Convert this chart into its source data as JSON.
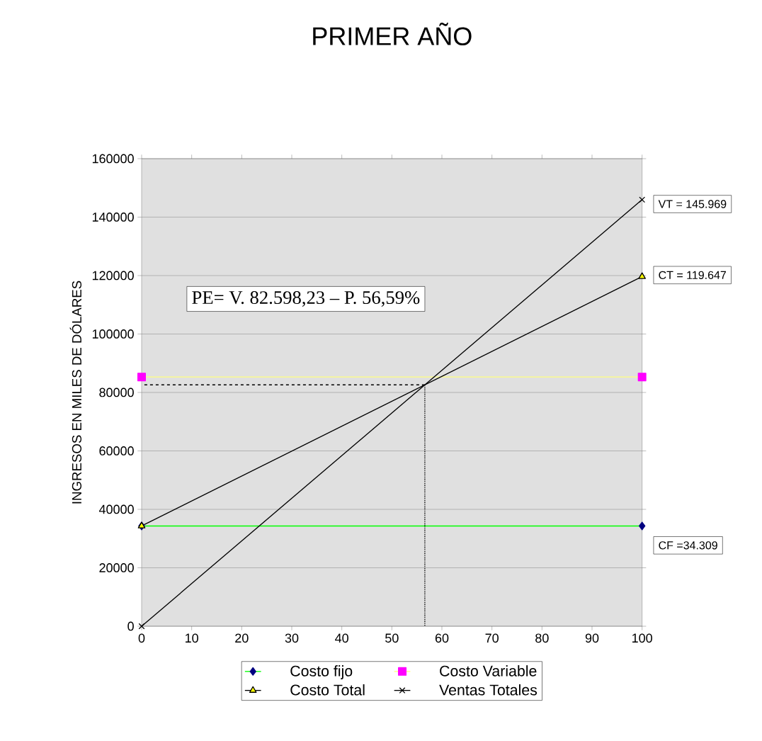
{
  "chart_data": {
    "type": "line",
    "title": "PRIMER AÑO",
    "ylabel": "INGRESOS EN MILES DE DÓLARES",
    "xlim": [
      0,
      100
    ],
    "ylim": [
      0,
      160000
    ],
    "xticks": [
      0,
      10,
      20,
      30,
      40,
      50,
      60,
      70,
      80,
      90,
      100
    ],
    "yticks": [
      0,
      20000,
      40000,
      60000,
      80000,
      100000,
      120000,
      140000,
      160000
    ],
    "grid": "y",
    "legend": "bottom",
    "series": [
      {
        "name": "Costo fijo",
        "x": [
          0,
          100
        ],
        "values": [
          34309,
          34309
        ],
        "color": "#00ff00",
        "colors": [
          "#000080",
          "#000080"
        ],
        "marker": "diamond"
      },
      {
        "name": "Costo Variable",
        "x": [
          0,
          100
        ],
        "values": [
          85300,
          85300
        ],
        "color": "#ffff80",
        "colors": [
          "#ff00ff",
          "#ff00ff"
        ],
        "marker": "square"
      },
      {
        "name": "Costo Total",
        "x": [
          0,
          100
        ],
        "values": [
          34309,
          119647
        ],
        "color": "#000000",
        "colors": [
          "#ffff00",
          "#ffff00"
        ],
        "marker": "triangle"
      },
      {
        "name": "Ventas Totales",
        "x": [
          0,
          100
        ],
        "values": [
          0,
          145969
        ],
        "color": "#000000",
        "marker": "cross"
      },
      {
        "x": [
          56.59,
          0
        ],
        "values": [
          82598,
          82598
        ],
        "color": "#000000",
        "marker": "none",
        "line_style": "dashed"
      },
      {
        "x": [
          56.59,
          56.59
        ],
        "values": [
          82598,
          0
        ],
        "color": "#000000",
        "marker": "none",
        "line_style": "dotted"
      }
    ],
    "annotations": [
      "VT = 145.969",
      "CT = 119.647",
      "CF =34.309",
      "PE=   V. 82.598,23 – P. 56,59%"
    ]
  }
}
